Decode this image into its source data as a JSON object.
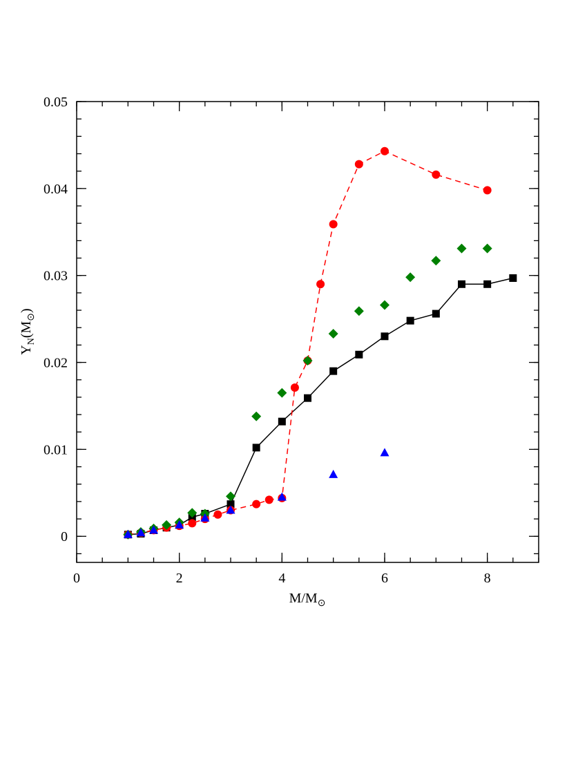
{
  "chart_data": {
    "type": "scatter",
    "xlabel": [
      "M/M",
      "⊙"
    ],
    "ylabel": [
      "Y",
      "N",
      "(M",
      "⊙",
      ")"
    ],
    "xlim": [
      0,
      9
    ],
    "ylim": [
      -0.003,
      0.05
    ],
    "xticks": [
      0,
      2,
      4,
      6,
      8
    ],
    "yticks": [
      0,
      0.01,
      0.02,
      0.03,
      0.04,
      0.05
    ],
    "minor_step": {
      "x": 0.5,
      "y": 0.002
    },
    "series": [
      {
        "color": "#000000",
        "marker": "square",
        "line": "solid",
        "x": [
          1,
          1.25,
          1.5,
          1.75,
          2,
          2.25,
          2.5,
          3,
          3.5,
          4,
          4.5,
          5,
          5.5,
          6,
          6.5,
          7,
          7.5,
          8,
          8.5
        ],
        "values": [
          0.0002,
          0.0003,
          0.0007,
          0.001,
          0.0013,
          0.0022,
          0.0026,
          0.0037,
          0.0102,
          0.0132,
          0.0159,
          0.019,
          0.0209,
          0.023,
          0.0248,
          0.0256,
          0.029,
          0.029,
          0.0297
        ]
      },
      {
        "color": "#ff0000",
        "marker": "circle",
        "line": "dashed",
        "x": [
          1,
          1.25,
          1.5,
          1.75,
          2,
          2.25,
          2.5,
          2.75,
          3,
          3.5,
          3.75,
          4,
          4.25,
          4.5,
          4.75,
          5,
          5.5,
          6,
          7,
          8
        ],
        "values": [
          0.0002,
          0.0004,
          0.0007,
          0.001,
          0.0012,
          0.0015,
          0.002,
          0.0025,
          0.003,
          0.0037,
          0.0042,
          0.0044,
          0.0171,
          0.0202,
          0.029,
          0.0359,
          0.0428,
          0.0443,
          0.0416,
          0.0398
        ]
      },
      {
        "color": "#008000",
        "marker": "diamond",
        "line": null,
        "x": [
          1,
          1.25,
          1.5,
          1.75,
          2,
          2.25,
          2.5,
          3,
          3.5,
          4,
          4.5,
          5,
          5.5,
          6,
          6.5,
          7,
          7.5,
          8
        ],
        "values": [
          0.0002,
          0.0005,
          0.0009,
          0.0013,
          0.0016,
          0.0027,
          0.0026,
          0.0046,
          0.0138,
          0.0165,
          0.0202,
          0.0233,
          0.0259,
          0.0266,
          0.0298,
          0.0317,
          0.0331,
          0.0331
        ]
      },
      {
        "color": "#0000ff",
        "marker": "triangle",
        "line": null,
        "x": [
          1,
          1.25,
          1.5,
          2,
          2.5,
          3,
          4,
          5,
          6
        ],
        "values": [
          0.0002,
          0.0004,
          0.0007,
          0.0013,
          0.0021,
          0.003,
          0.0045,
          0.0071,
          0.0096
        ]
      }
    ]
  }
}
